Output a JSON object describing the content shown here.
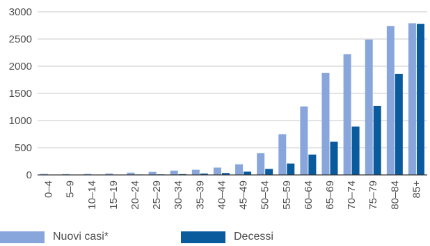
{
  "chart_data": {
    "type": "bar",
    "categories": [
      "0–4",
      "5–9",
      "10–14",
      "15–19",
      "20–24",
      "25–29",
      "30–34",
      "35–39",
      "40–44",
      "45–49",
      "50–54",
      "55–59",
      "60–64",
      "65–69",
      "70–74",
      "75–79",
      "80–84",
      "85+"
    ],
    "series": [
      {
        "name": "Nuovi casi*",
        "color": "#88a6dc",
        "values": [
          18,
          15,
          18,
          25,
          42,
          55,
          80,
          95,
          135,
          195,
          400,
          750,
          1260,
          1875,
          2220,
          2490,
          2740,
          2790
        ]
      },
      {
        "name": "Decessi",
        "color": "#0a5a9e",
        "values": [
          5,
          3,
          3,
          5,
          8,
          10,
          15,
          25,
          35,
          60,
          110,
          210,
          375,
          610,
          890,
          1270,
          1860,
          2780
        ]
      }
    ],
    "yticks": [
      0,
      500,
      1000,
      1500,
      2000,
      2500,
      3000
    ],
    "ylim": [
      0,
      3000
    ],
    "grid": true,
    "legend_position": "bottom",
    "colors": {
      "grid": "#c8c8c8",
      "axis": "#333333",
      "text": "#4d4d4d"
    }
  }
}
